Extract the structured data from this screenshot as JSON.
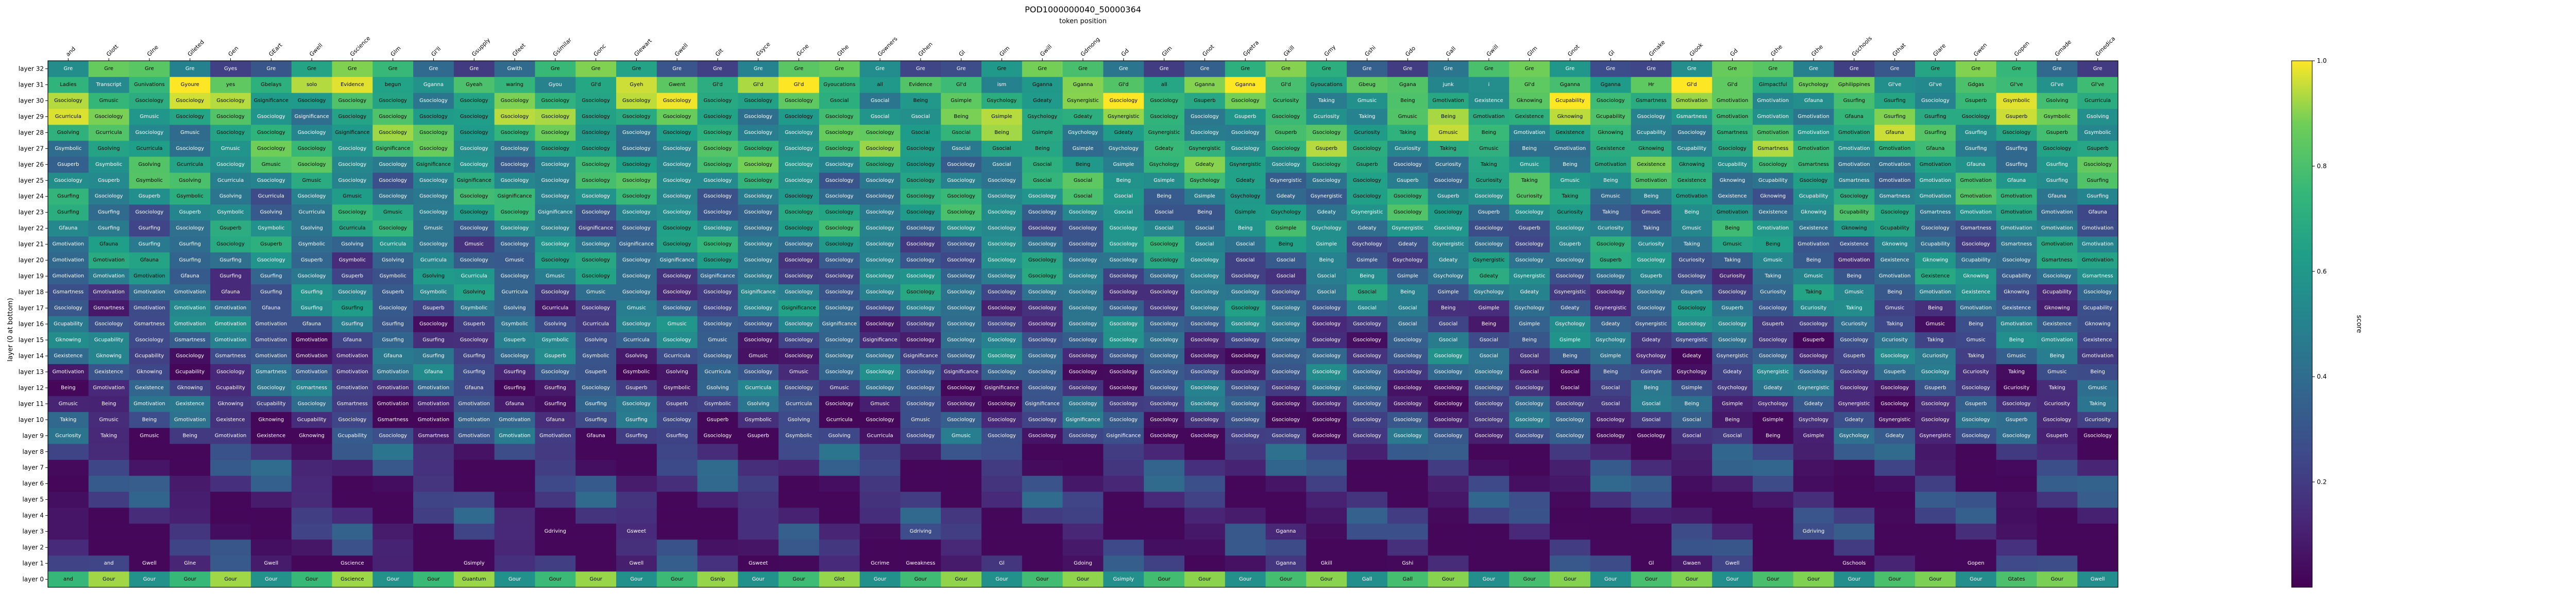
{
  "chart_data": {
    "type": "heatmap",
    "title": "POD1000000040_50000364",
    "xlabel": "token position",
    "ylabel": "layer (0 at bottom)",
    "colorbar_label": "score",
    "colorbar_ticks": [
      "0.2",
      "0.4",
      "0.6",
      "0.8",
      "1.0"
    ],
    "value_range": [
      0.0,
      1.0
    ],
    "colormap": "viridis",
    "x_tick_labels": [
      "and",
      "Glott",
      "Glne",
      "Glleted",
      "Gen",
      "GEart",
      "Gwell",
      "Gscience",
      "Glm",
      "Gl'll",
      "Gsupply",
      "Gfeet",
      "Gsimilar",
      "Gonc",
      "Glewart",
      "Gwell",
      "Glt",
      "Gsyce",
      "Gcne",
      "Gthe",
      "Gowners",
      "Gthen",
      "Gl",
      "Glm",
      "Gwill",
      "Gdmong",
      "Gd",
      "Glm",
      "Gnot",
      "Gpetra",
      "Gkill",
      "Gmy",
      "Gshi",
      "Gdo",
      "Gall",
      "Gwill",
      "Glm",
      "Gnot",
      "Gl",
      "Gmake",
      "Glook",
      "Gd",
      "Gthe",
      "Gthe",
      "Gschools",
      "Gthat",
      "Glare",
      "Gwen",
      "Gopen",
      "Gmade",
      "Gmedica"
    ],
    "y_tick_labels": [
      "layer 0",
      "layer 1",
      "layer 2",
      "layer 3",
      "layer 4",
      "layer 5",
      "layer 6",
      "layer 7",
      "layer 8",
      "layer 9",
      "layer 10",
      "layer 11",
      "layer 12",
      "layer 13",
      "layer 14",
      "layer 15",
      "layer 16",
      "layer 17",
      "layer 18",
      "layer 19",
      "layer 20",
      "layer 21",
      "layer 22",
      "layer 23",
      "layer 24",
      "layer 25",
      "layer 26",
      "layer 27",
      "layer 28",
      "layer 29",
      "layer 30",
      "layer 31",
      "layer 32"
    ],
    "top_row_tokens": [
      "Gre",
      "Gre",
      "Gre",
      "Gre",
      "Gyes",
      "Gre",
      "Gre",
      "Gre",
      "Gre",
      "Gre",
      "Gre",
      "Gwith",
      "Gre",
      "Gre",
      "Gre",
      "Gre",
      "Gre",
      "Gre",
      "Gre",
      "Gre",
      "Gre",
      "Gre",
      "Gre",
      "Gre",
      "Gre",
      "Gre",
      "Gre",
      "Gre",
      "Gre",
      "Gre",
      "Gre",
      "Gre",
      "Gre",
      "Gre",
      "Gre",
      "Gre",
      "Gre",
      "Gre",
      "Gre",
      "Gre",
      "Gre",
      "Gre",
      "Gre",
      "Gre",
      "Gre",
      "Gre",
      "Gre",
      "Gre",
      "Gre",
      "Gre",
      "Gre"
    ],
    "row_31_tokens": [
      "Ladies",
      "Transcript",
      "Gunivations",
      "Gyoure",
      "yes",
      "Gbelays",
      "solo",
      "Evidence",
      "begun",
      "Gganna",
      "Gyeah",
      "waring",
      "Gyou",
      "Gl'd",
      "Gyeh",
      "Gwent",
      "Gl'd",
      "Gl'd",
      "Gl'd",
      "Gyoucations",
      "all",
      "Evidence",
      "Gl'd",
      "ism",
      "Gganna",
      "Gganna",
      "Gl'd",
      "all",
      "Gganna",
      "Gganna",
      "Gl'd",
      "Gyoucations",
      "Gbeug",
      "Ggana",
      "junk",
      "i",
      "Gl'd",
      "Gganna",
      "Gganna",
      "Hr",
      "Gl'd",
      "Gl'd",
      "Gimpactful",
      "Gsychology",
      "Gphilippines",
      "Gl've",
      "Gl've",
      "Gdgas",
      "Gl've",
      "Gl've",
      "Gl've"
    ],
    "repeated_tokens": [
      "Being",
      "Gsimple",
      "Gsychology",
      "Gdeaty",
      "Gsynergistic",
      "Gsociology",
      "Gsociology",
      "Gsuperb",
      "Gsociology",
      "Gcuriosity",
      "Taking",
      "Gmusic",
      "Being",
      "Gmotivation",
      "Gexistence",
      "Gknowing",
      "Gcupability",
      "Gsociology",
      "Gsmartness",
      "Gmotivation",
      "Gmotivation",
      "Gmotivation",
      "Gfauna",
      "Gsurfing",
      "Gsurfing",
      "Gsociology",
      "Gsuperb",
      "Gsymbolic",
      "Gsolving",
      "Gcurricula",
      "Gsociology",
      "Gmusic",
      "Gsociology",
      "Gsociology",
      "Gsociology",
      "Gsignificance",
      "Gsociology",
      "Gsociology",
      "Gsociology",
      "Gsociology",
      "Gsociology",
      "Gsociology",
      "Gsociology",
      "Gsociology",
      "Gsociology",
      "Gsociology",
      "Gsociology",
      "Gsociology",
      "Gsociology",
      "Gsocial",
      "Gsocial"
    ],
    "layer_0_tokens": [
      "and",
      "Gour",
      "Gour",
      "Gour",
      "Gour",
      "Gour",
      "Gour",
      "Gscience",
      "Gour",
      "Gour",
      "Guantum",
      "Gour",
      "Gour",
      "Gour",
      "Gour",
      "Gour",
      "Gsnip",
      "Gour",
      "Gour",
      "Glot",
      "Gour",
      "Gour",
      "Gour",
      "Gour",
      "Gour",
      "Gour",
      "Gsimply",
      "Gour",
      "Gour",
      "Gour",
      "Gour",
      "Gour",
      "Gall",
      "Gall",
      "Gour",
      "Gour",
      "Gour",
      "Gour",
      "Gour",
      "Gour",
      "Gour",
      "Gour",
      "Gour",
      "Gour",
      "Gour",
      "Gour",
      "Gour",
      "Gour",
      "Gtates",
      "Gour",
      "Gwell"
    ],
    "layer_1_tokens": [
      "",
      "and",
      "Gwell",
      "Glne",
      "",
      "Gwell",
      "",
      "Gscience",
      "",
      "",
      "Gsimply",
      "",
      "",
      "",
      "Gwell",
      "",
      "",
      "Gsweet",
      "",
      "",
      "Gcrime",
      "Gweakness",
      "",
      "Gl",
      "",
      "Gdoing",
      "",
      "",
      "",
      "",
      "Gganna",
      "Gkill",
      "",
      "Gshi",
      "",
      "",
      "",
      "",
      "",
      "Gl",
      "Gwaen",
      "Gwell",
      "",
      "",
      "Gschools",
      "",
      "",
      "Gopen",
      "",
      "",
      ""
    ],
    "layer_3_tokens": [
      "",
      "",
      "",
      "",
      "",
      "",
      "",
      "",
      "",
      "",
      "",
      "",
      "Gdriving",
      "",
      "Gsweet",
      "",
      "",
      "",
      "",
      "",
      "",
      "Gdriving",
      "",
      "",
      "",
      "",
      "",
      "",
      "",
      "",
      "Gganna",
      "",
      "",
      "",
      "",
      "",
      "",
      "",
      "",
      "",
      "",
      "",
      "",
      "Gdriving",
      "",
      "",
      "",
      "",
      "",
      "",
      ""
    ],
    "colors": {
      "low": "#440154",
      "mid_low": "#3b528b",
      "mid": "#21918c",
      "mid_high": "#5ec962",
      "high": "#fde725"
    }
  }
}
